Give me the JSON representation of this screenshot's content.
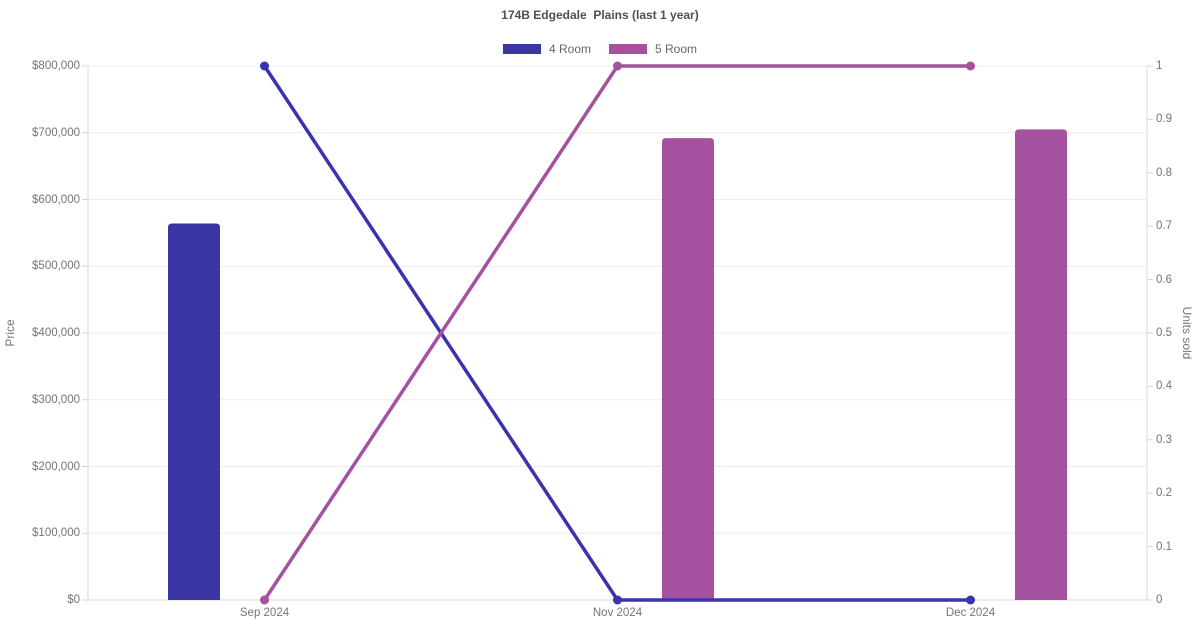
{
  "title": "174B Edgedale  Plains (last 1 year)",
  "legend": [
    {
      "label": "4 Room",
      "color": "#3a37a4"
    },
    {
      "label": "5 Room",
      "color": "#a4519f"
    }
  ],
  "chart_data": {
    "type": "combo",
    "categories": [
      "Sep 2024",
      "Nov 2024",
      "Dec 2024"
    ],
    "left_axis": {
      "label": "Price",
      "min": 0,
      "max": 800000,
      "tick_step": 100000,
      "format": "usd"
    },
    "right_axis": {
      "label": "Units sold",
      "min": 0,
      "max": 1,
      "tick_step": 0.1,
      "format": "plain"
    },
    "grid": "horizontal",
    "legend_position": "top",
    "series": [
      {
        "name": "4 Room",
        "kind": "bar",
        "axis": "left",
        "color": "#3a37a4",
        "values": [
          564000,
          null,
          null
        ]
      },
      {
        "name": "5 Room",
        "kind": "bar",
        "axis": "left",
        "color": "#a4519f",
        "values": [
          null,
          692000,
          705000
        ]
      },
      {
        "name": "4 Room",
        "kind": "line",
        "axis": "right",
        "color": "#3b33ae",
        "values": [
          1,
          0,
          0
        ]
      },
      {
        "name": "5 Room",
        "kind": "line",
        "axis": "right",
        "color": "#a4519f",
        "values": [
          0,
          1,
          1
        ]
      }
    ]
  }
}
